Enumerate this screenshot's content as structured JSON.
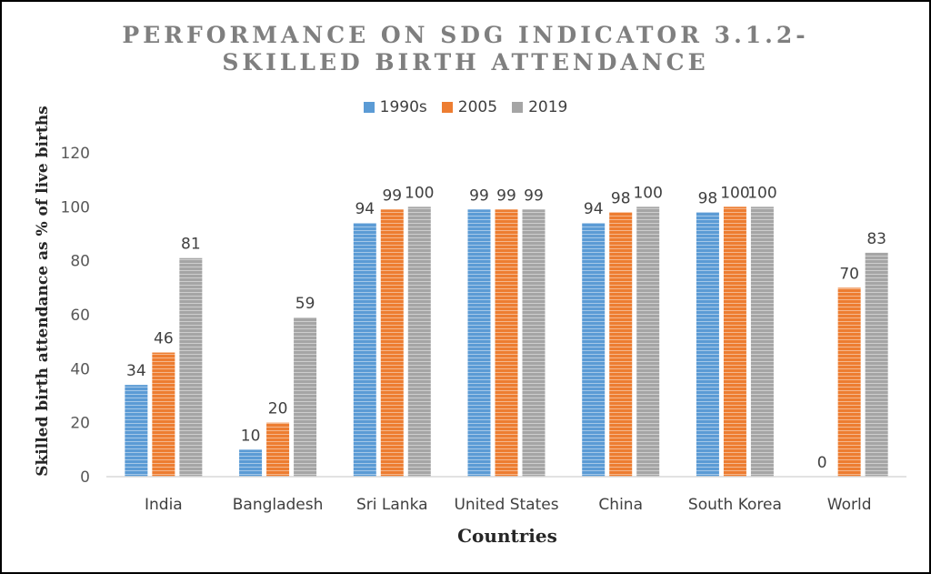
{
  "chart_data": {
    "type": "bar",
    "title_line1": "PERFORMANCE ON SDG INDICATOR 3.1.2-",
    "title_line2": "SKILLED BIRTH ATTENDANCE",
    "xlabel": "Countries",
    "ylabel": "Skilled birth attendance as % of live births",
    "ylim": [
      0,
      120
    ],
    "yticks": [
      "0",
      "20",
      "40",
      "60",
      "80",
      "100",
      "120"
    ],
    "legend_position": "top",
    "grid": false,
    "categories": [
      "India",
      "Bangladesh",
      "Sri Lanka",
      "United States",
      "China",
      "South Korea",
      "World"
    ],
    "series": [
      {
        "name": "1990s",
        "color": "#5b9bd5",
        "values": [
          34,
          10,
          94,
          99,
          94,
          98,
          0
        ]
      },
      {
        "name": "2005",
        "color": "#ed7d31",
        "values": [
          46,
          20,
          99,
          99,
          98,
          100,
          70
        ]
      },
      {
        "name": "2019",
        "color": "#a5a5a5",
        "values": [
          81,
          59,
          100,
          99,
          100,
          100,
          83
        ]
      }
    ]
  }
}
